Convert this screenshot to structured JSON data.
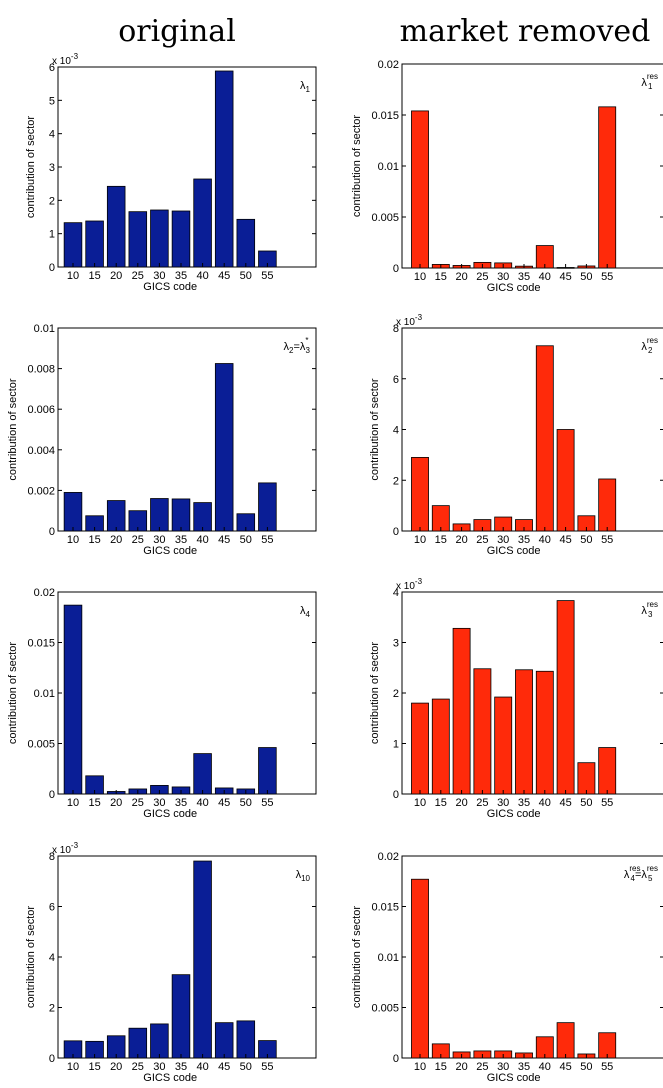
{
  "figure": {
    "column_titles": [
      "original",
      "market removed"
    ]
  },
  "chart_data": [
    {
      "type": "bar",
      "column": "original",
      "color": "#0a1e96",
      "categories": [
        "10",
        "15",
        "20",
        "25",
        "30",
        "35",
        "40",
        "45",
        "50",
        "55"
      ],
      "values": [
        0.00133,
        0.00138,
        0.00242,
        0.00166,
        0.00171,
        0.00168,
        0.00264,
        0.00588,
        0.00143,
        0.00048
      ],
      "ylim": [
        0,
        0.006
      ],
      "yticks": [
        0,
        0.001,
        0.002,
        0.003,
        0.004,
        0.005,
        0.006
      ],
      "yticklabels": [
        "0",
        "1",
        "2",
        "3",
        "4",
        "5",
        "6"
      ],
      "yexponent": "-3",
      "xlabel": "GICS code",
      "ylabel": "contribution of sector",
      "legend": {
        "base": "λ",
        "sub": "1",
        "sup": ""
      }
    },
    {
      "type": "bar",
      "column": "market removed",
      "color": "#ff2a0a",
      "categories": [
        "10",
        "15",
        "20",
        "25",
        "30",
        "35",
        "40",
        "45",
        "50",
        "55"
      ],
      "values": [
        0.0154,
        0.00035,
        0.00025,
        0.00055,
        0.0005,
        0.00018,
        0.0022,
        5e-05,
        0.0002,
        0.0158
      ],
      "ylim": [
        0,
        0.02
      ],
      "yticks": [
        0,
        0.005,
        0.01,
        0.015,
        0.02
      ],
      "yticklabels": [
        "0",
        "0.005",
        "0.01",
        "0.015",
        "0.02"
      ],
      "yexponent": "",
      "xlabel": "GICS code",
      "ylabel": "contribution of sector",
      "legend": {
        "base": "λ",
        "sub": "1",
        "sup": "res"
      }
    },
    {
      "type": "bar",
      "column": "original",
      "color": "#0a1e96",
      "categories": [
        "10",
        "15",
        "20",
        "25",
        "30",
        "35",
        "40",
        "45",
        "50",
        "55"
      ],
      "values": [
        0.0019,
        0.00075,
        0.0015,
        0.001,
        0.0016,
        0.00158,
        0.0014,
        0.00825,
        0.00085,
        0.00237
      ],
      "ylim": [
        0,
        0.01
      ],
      "yticks": [
        0,
        0.002,
        0.004,
        0.006,
        0.008,
        0.01
      ],
      "yticklabels": [
        "0",
        "0.002",
        "0.004",
        "0.006",
        "0.008",
        "0.01"
      ],
      "yexponent": "",
      "xlabel": "GICS code",
      "ylabel": "contribution of sector",
      "legend": {
        "base": "λ",
        "sub": "2",
        "sup": "",
        "eq_base": "λ",
        "eq_sub": "3",
        "eq_sup": "*"
      }
    },
    {
      "type": "bar",
      "column": "market removed",
      "color": "#ff2a0a",
      "categories": [
        "10",
        "15",
        "20",
        "25",
        "30",
        "35",
        "40",
        "45",
        "50",
        "55"
      ],
      "values": [
        0.0029,
        0.001,
        0.00028,
        0.00045,
        0.00055,
        0.00045,
        0.0073,
        0.004,
        0.0006,
        0.00205
      ],
      "ylim": [
        0,
        0.008
      ],
      "yticks": [
        0,
        0.002,
        0.004,
        0.006,
        0.008
      ],
      "yticklabels": [
        "0",
        "2",
        "4",
        "6",
        "8"
      ],
      "yexponent": "-3",
      "xlabel": "GICS code",
      "ylabel": "contribution of sector",
      "legend": {
        "base": "λ",
        "sub": "2",
        "sup": "res"
      }
    },
    {
      "type": "bar",
      "column": "original",
      "color": "#0a1e96",
      "categories": [
        "10",
        "15",
        "20",
        "25",
        "30",
        "35",
        "40",
        "45",
        "50",
        "55"
      ],
      "values": [
        0.0187,
        0.0018,
        0.00025,
        0.0005,
        0.00085,
        0.0007,
        0.004,
        0.0006,
        0.0005,
        0.0046
      ],
      "ylim": [
        0,
        0.02
      ],
      "yticks": [
        0,
        0.005,
        0.01,
        0.015,
        0.02
      ],
      "yticklabels": [
        "0",
        "0.005",
        "0.01",
        "0.015",
        "0.02"
      ],
      "yexponent": "",
      "xlabel": "GICS code",
      "ylabel": "contribution of sector",
      "legend": {
        "base": "λ",
        "sub": "4",
        "sup": ""
      }
    },
    {
      "type": "bar",
      "column": "market removed",
      "color": "#ff2a0a",
      "categories": [
        "10",
        "15",
        "20",
        "25",
        "30",
        "35",
        "40",
        "45",
        "50",
        "55"
      ],
      "values": [
        0.0018,
        0.00188,
        0.00328,
        0.00248,
        0.00192,
        0.00246,
        0.00243,
        0.00383,
        0.00062,
        0.00092
      ],
      "ylim": [
        0,
        0.004
      ],
      "yticks": [
        0,
        0.001,
        0.002,
        0.003,
        0.004
      ],
      "yticklabels": [
        "0",
        "1",
        "2",
        "3",
        "4"
      ],
      "yexponent": "-3",
      "xlabel": "GICS code",
      "ylabel": "contribution of sector",
      "legend": {
        "base": "λ",
        "sub": "3",
        "sup": "res"
      }
    },
    {
      "type": "bar",
      "column": "original",
      "color": "#0a1e96",
      "categories": [
        "10",
        "15",
        "20",
        "25",
        "30",
        "35",
        "40",
        "45",
        "50",
        "55"
      ],
      "values": [
        0.00068,
        0.00066,
        0.00088,
        0.00118,
        0.00135,
        0.0033,
        0.0078,
        0.0014,
        0.00147,
        0.00069
      ],
      "ylim": [
        0,
        0.008
      ],
      "yticks": [
        0,
        0.002,
        0.004,
        0.006,
        0.008
      ],
      "yticklabels": [
        "0",
        "2",
        "4",
        "6",
        "8"
      ],
      "yexponent": "-3",
      "xlabel": "GICS code",
      "ylabel": "contribution of sector",
      "legend": {
        "base": "λ",
        "sub": "10",
        "sup": ""
      }
    },
    {
      "type": "bar",
      "column": "market removed",
      "color": "#ff2a0a",
      "categories": [
        "10",
        "15",
        "20",
        "25",
        "30",
        "35",
        "40",
        "45",
        "50",
        "55"
      ],
      "values": [
        0.0177,
        0.0014,
        0.0006,
        0.0007,
        0.0007,
        0.0005,
        0.0021,
        0.0035,
        0.0004,
        0.0025
      ],
      "ylim": [
        0,
        0.02
      ],
      "yticks": [
        0,
        0.005,
        0.01,
        0.015,
        0.02
      ],
      "yticklabels": [
        "0",
        "0.005",
        "0.01",
        "0.015",
        "0.02"
      ],
      "yexponent": "",
      "xlabel": "GICS code",
      "ylabel": "contribution of sector",
      "legend": {
        "base": "λ",
        "sub": "4",
        "sup": "res",
        "eq_base": "λ",
        "eq_sub": "5",
        "eq_sup": "res"
      }
    }
  ]
}
